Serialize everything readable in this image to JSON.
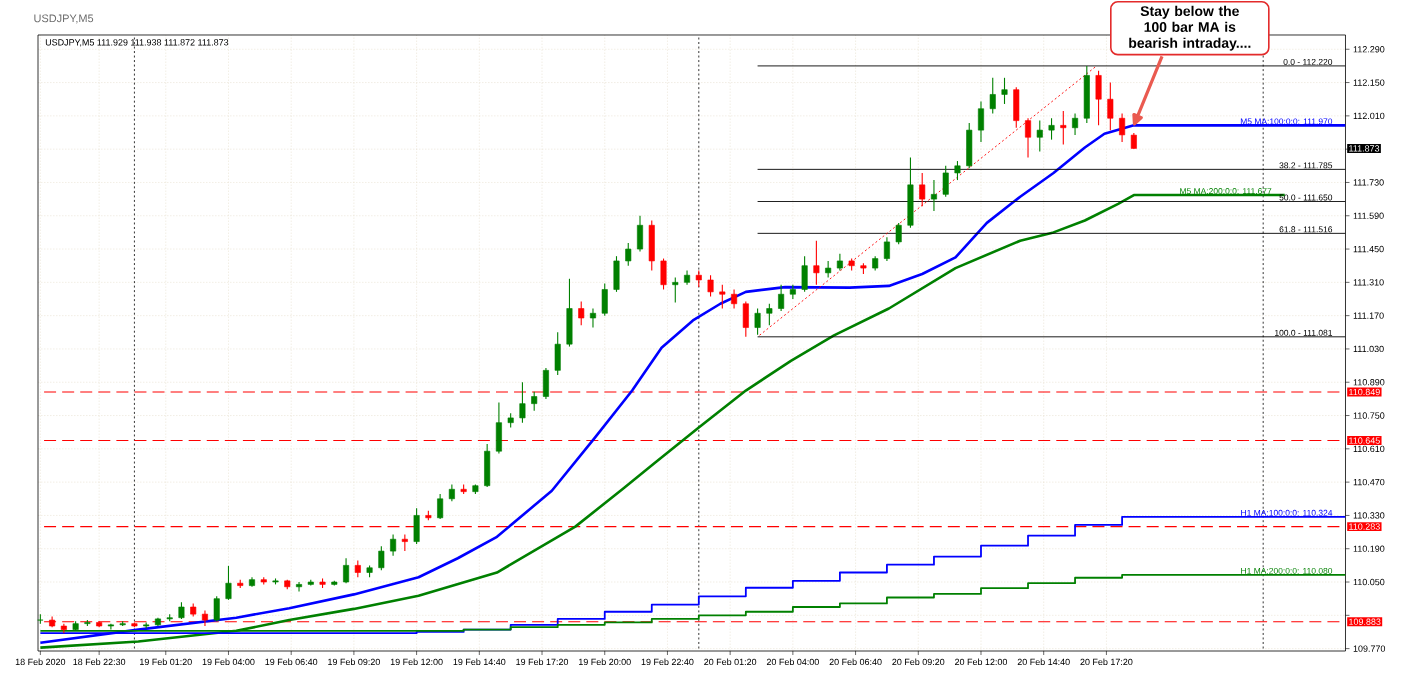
{
  "chart_data": {
    "type": "candlestick",
    "title": "USDJPY,M5",
    "subtitle": "USDJPY,M5 111.929 111.938 111.872 111.873",
    "x": [
      "2020-02-18T20:00",
      "2020-02-18T20:30",
      "2020-02-18T21:00",
      "2020-02-18T21:30",
      "2020-02-18T22:00",
      "2020-02-18T22:30",
      "2020-02-18T23:00",
      "2020-02-18T23:30",
      "2020-02-19T00:00",
      "2020-02-19T00:30",
      "2020-02-19T01:00",
      "2020-02-19T01:30",
      "2020-02-19T02:00",
      "2020-02-19T02:30",
      "2020-02-19T03:00",
      "2020-02-19T03:30",
      "2020-02-19T04:00",
      "2020-02-19T04:30",
      "2020-02-19T05:00",
      "2020-02-19T05:30",
      "2020-02-19T06:00",
      "2020-02-19T06:30",
      "2020-02-19T07:00",
      "2020-02-19T07:30",
      "2020-02-19T08:00",
      "2020-02-19T08:30",
      "2020-02-19T09:00",
      "2020-02-19T09:30",
      "2020-02-19T10:00",
      "2020-02-19T10:30",
      "2020-02-19T11:00",
      "2020-02-19T11:30",
      "2020-02-19T12:00",
      "2020-02-19T12:30",
      "2020-02-19T13:00",
      "2020-02-19T13:30",
      "2020-02-19T14:00",
      "2020-02-19T14:30",
      "2020-02-19T15:00",
      "2020-02-19T15:30",
      "2020-02-19T16:00",
      "2020-02-19T16:30",
      "2020-02-19T17:00",
      "2020-02-19T17:30",
      "2020-02-19T18:00",
      "2020-02-19T18:30",
      "2020-02-19T19:00",
      "2020-02-19T19:30",
      "2020-02-19T20:00",
      "2020-02-19T20:30",
      "2020-02-19T21:00",
      "2020-02-19T21:30",
      "2020-02-19T22:00",
      "2020-02-19T22:30",
      "2020-02-19T23:00",
      "2020-02-19T23:30",
      "2020-02-20T00:00",
      "2020-02-20T00:30",
      "2020-02-20T01:00",
      "2020-02-20T01:30",
      "2020-02-20T02:00",
      "2020-02-20T02:30",
      "2020-02-20T03:00",
      "2020-02-20T03:30",
      "2020-02-20T04:00",
      "2020-02-20T04:30",
      "2020-02-20T05:00",
      "2020-02-20T05:30",
      "2020-02-20T06:00",
      "2020-02-20T06:30",
      "2020-02-20T07:00",
      "2020-02-20T07:30",
      "2020-02-20T08:00",
      "2020-02-20T08:30",
      "2020-02-20T09:00",
      "2020-02-20T09:30",
      "2020-02-20T10:00",
      "2020-02-20T10:30",
      "2020-02-20T11:00",
      "2020-02-20T11:30",
      "2020-02-20T12:00",
      "2020-02-20T12:30",
      "2020-02-20T13:00",
      "2020-02-20T13:30",
      "2020-02-20T14:00",
      "2020-02-20T14:30",
      "2020-02-20T15:00",
      "2020-02-20T15:30",
      "2020-02-20T16:00",
      "2020-02-20T16:30",
      "2020-02-20T17:00",
      "2020-02-20T17:30",
      "2020-02-20T18:00",
      "2020-02-20T18:30"
    ],
    "ohlc": [
      [
        109.89,
        109.915,
        109.875,
        109.89
      ],
      [
        109.89,
        109.905,
        109.86,
        109.865
      ],
      [
        109.865,
        109.875,
        109.835,
        109.85
      ],
      [
        109.85,
        109.885,
        109.845,
        109.875
      ],
      [
        109.875,
        109.89,
        109.865,
        109.88
      ],
      [
        109.88,
        109.885,
        109.86,
        109.865
      ],
      [
        109.865,
        109.875,
        109.85,
        109.87
      ],
      [
        109.87,
        109.885,
        109.865,
        109.875
      ],
      [
        109.875,
        109.88,
        109.86,
        109.865
      ],
      [
        109.865,
        109.88,
        109.855,
        109.87
      ],
      [
        109.87,
        109.9,
        109.865,
        109.895
      ],
      [
        109.895,
        109.915,
        109.885,
        109.9
      ],
      [
        109.9,
        109.965,
        109.895,
        109.945
      ],
      [
        109.945,
        109.96,
        109.905,
        109.915
      ],
      [
        109.915,
        109.93,
        109.865,
        109.89
      ],
      [
        109.89,
        109.99,
        109.885,
        109.98
      ],
      [
        109.98,
        110.118,
        109.975,
        110.045
      ],
      [
        110.045,
        110.06,
        110.025,
        110.035
      ],
      [
        110.035,
        110.07,
        110.03,
        110.06
      ],
      [
        110.06,
        110.07,
        110.04,
        110.05
      ],
      [
        110.05,
        110.065,
        110.04,
        110.055
      ],
      [
        110.055,
        110.06,
        110.02,
        110.03
      ],
      [
        110.03,
        110.05,
        110.01,
        110.04
      ],
      [
        110.04,
        110.06,
        110.035,
        110.05
      ],
      [
        110.05,
        110.065,
        110.025,
        110.04
      ],
      [
        110.04,
        110.055,
        110.035,
        110.05
      ],
      [
        110.05,
        110.15,
        110.045,
        110.12
      ],
      [
        110.12,
        110.14,
        110.07,
        110.09
      ],
      [
        110.09,
        110.12,
        110.07,
        110.11
      ],
      [
        110.11,
        110.2,
        110.1,
        110.18
      ],
      [
        110.18,
        110.25,
        110.16,
        110.23
      ],
      [
        110.23,
        110.25,
        110.18,
        110.22
      ],
      [
        110.22,
        110.36,
        110.21,
        110.33
      ],
      [
        110.33,
        110.35,
        110.31,
        110.32
      ],
      [
        110.32,
        110.42,
        110.315,
        110.4
      ],
      [
        110.4,
        110.46,
        110.39,
        110.44
      ],
      [
        110.44,
        110.46,
        110.42,
        110.43
      ],
      [
        110.43,
        110.46,
        110.42,
        110.455
      ],
      [
        110.455,
        110.63,
        110.45,
        110.6
      ],
      [
        110.6,
        110.805,
        110.59,
        110.72
      ],
      [
        110.72,
        110.76,
        110.7,
        110.74
      ],
      [
        110.74,
        110.89,
        110.72,
        110.8
      ],
      [
        110.8,
        110.85,
        110.77,
        110.83
      ],
      [
        110.83,
        110.95,
        110.82,
        110.94
      ],
      [
        110.94,
        111.1,
        110.92,
        111.05
      ],
      [
        111.05,
        111.325,
        111.04,
        111.2
      ],
      [
        111.2,
        111.23,
        111.13,
        111.16
      ],
      [
        111.16,
        111.2,
        111.12,
        111.18
      ],
      [
        111.18,
        111.305,
        111.17,
        111.28
      ],
      [
        111.28,
        111.42,
        111.27,
        111.4
      ],
      [
        111.4,
        111.475,
        111.38,
        111.45
      ],
      [
        111.45,
        111.59,
        111.44,
        111.55
      ],
      [
        111.55,
        111.57,
        111.36,
        111.4
      ],
      [
        111.4,
        111.41,
        111.28,
        111.3
      ],
      [
        111.3,
        111.33,
        111.225,
        111.31
      ],
      [
        111.31,
        111.36,
        111.3,
        111.34
      ],
      [
        111.34,
        111.36,
        111.29,
        111.32
      ],
      [
        111.32,
        111.34,
        111.25,
        111.27
      ],
      [
        111.27,
        111.3,
        111.2,
        111.26
      ],
      [
        111.26,
        111.28,
        111.2,
        111.22
      ],
      [
        111.22,
        111.23,
        111.081,
        111.12
      ],
      [
        111.12,
        111.2,
        111.09,
        111.18
      ],
      [
        111.18,
        111.22,
        111.13,
        111.2
      ],
      [
        111.2,
        111.3,
        111.19,
        111.26
      ],
      [
        111.26,
        111.3,
        111.24,
        111.28
      ],
      [
        111.28,
        111.42,
        111.27,
        111.38
      ],
      [
        111.38,
        111.485,
        111.3,
        111.35
      ],
      [
        111.35,
        111.4,
        111.33,
        111.37
      ],
      [
        111.37,
        111.43,
        111.36,
        111.4
      ],
      [
        111.4,
        111.41,
        111.36,
        111.38
      ],
      [
        111.38,
        111.39,
        111.345,
        111.37
      ],
      [
        111.37,
        111.42,
        111.36,
        111.41
      ],
      [
        111.41,
        111.5,
        111.4,
        111.48
      ],
      [
        111.48,
        111.56,
        111.47,
        111.55
      ],
      [
        111.55,
        111.835,
        111.54,
        111.72
      ],
      [
        111.72,
        111.77,
        111.63,
        111.66
      ],
      [
        111.66,
        111.74,
        111.61,
        111.68
      ],
      [
        111.68,
        111.8,
        111.67,
        111.77
      ],
      [
        111.77,
        111.82,
        111.74,
        111.8
      ],
      [
        111.8,
        111.98,
        111.79,
        111.95
      ],
      [
        111.95,
        112.07,
        111.9,
        112.04
      ],
      [
        112.04,
        112.17,
        112.02,
        112.1
      ],
      [
        112.1,
        112.17,
        112.06,
        112.12
      ],
      [
        112.12,
        112.13,
        111.96,
        111.99
      ],
      [
        111.99,
        112.0,
        111.835,
        111.92
      ],
      [
        111.92,
        111.99,
        111.86,
        111.95
      ],
      [
        111.95,
        112.0,
        111.91,
        111.97
      ],
      [
        111.97,
        112.03,
        111.89,
        111.96
      ],
      [
        111.96,
        112.02,
        111.93,
        112.0
      ],
      [
        112.0,
        112.22,
        111.98,
        112.18
      ],
      [
        112.18,
        112.2,
        111.97,
        112.08
      ],
      [
        112.08,
        112.15,
        111.95,
        112.0
      ],
      [
        112.0,
        112.02,
        111.9,
        111.93
      ],
      [
        111.929,
        111.938,
        111.872,
        111.873
      ]
    ],
    "colors": [
      "#008000",
      "#ff0000",
      "#ff0000",
      "#008000",
      "#008000",
      "#ff0000",
      "#008000",
      "#008000",
      "#ff0000",
      "#008000",
      "#008000",
      "#008000",
      "#008000",
      "#ff0000",
      "#ff0000",
      "#008000",
      "#008000",
      "#ff0000",
      "#008000",
      "#ff0000",
      "#008000",
      "#ff0000",
      "#008000",
      "#008000",
      "#ff0000",
      "#008000",
      "#008000",
      "#ff0000",
      "#008000",
      "#008000",
      "#008000",
      "#ff0000",
      "#008000",
      "#ff0000",
      "#008000",
      "#008000",
      "#ff0000",
      "#008000",
      "#008000",
      "#008000",
      "#008000",
      "#008000",
      "#008000",
      "#008000",
      "#008000",
      "#008000",
      "#ff0000",
      "#008000",
      "#008000",
      "#008000",
      "#008000",
      "#008000",
      "#ff0000",
      "#ff0000",
      "#008000",
      "#008000",
      "#ff0000",
      "#ff0000",
      "#ff0000",
      "#ff0000",
      "#ff0000",
      "#008000",
      "#008000",
      "#008000",
      "#008000",
      "#008000",
      "#ff0000",
      "#008000",
      "#008000",
      "#ff0000",
      "#ff0000",
      "#008000",
      "#008000",
      "#008000",
      "#008000",
      "#ff0000",
      "#008000",
      "#008000",
      "#008000",
      "#008000",
      "#008000",
      "#008000",
      "#008000",
      "#ff0000",
      "#ff0000",
      "#008000",
      "#008000",
      "#ff0000",
      "#008000",
      "#008000",
      "#ff0000",
      "#ff0000",
      "#ff0000",
      "#ff0000"
    ],
    "series": [
      {
        "name": "M5 MA:100:0:0: 111.970",
        "type": "line",
        "color": "#0000ff",
        "x": [
          "2020-02-18T20:00",
          "2020-02-19T00:10",
          "2020-02-19T04:20",
          "2020-02-19T06:35",
          "2020-02-19T09:20",
          "2020-02-19T12:05",
          "2020-02-19T13:45",
          "2020-02-19T15:25",
          "2020-02-19T17:45",
          "2020-02-19T19:35",
          "2020-02-19T21:10",
          "2020-02-19T22:25",
          "2020-02-19T23:45",
          "2020-02-20T00:55",
          "2020-02-20T02:00",
          "2020-02-20T03:40",
          "2020-02-20T06:25",
          "2020-02-20T08:05",
          "2020-02-20T09:30",
          "2020-02-20T10:55",
          "2020-02-20T12:15",
          "2020-02-20T13:40",
          "2020-02-20T15:05",
          "2020-02-20T16:25",
          "2020-02-20T17:15",
          "2020-02-20T18:30",
          "2020-02-21T03:30"
        ],
        "values": [
          109.795,
          109.85,
          109.9,
          109.94,
          109.998,
          110.07,
          110.15,
          110.24,
          110.434,
          110.657,
          110.855,
          111.035,
          111.15,
          111.22,
          111.27,
          111.29,
          111.288,
          111.295,
          111.345,
          111.415,
          111.56,
          111.67,
          111.77,
          111.877,
          111.935,
          111.97,
          111.97
        ]
      },
      {
        "name": "M5 MA:200:0:0: 111.677",
        "type": "line",
        "color": "#008000",
        "x": [
          "2020-02-18T20:00",
          "2020-02-19T00:10",
          "2020-02-19T04:20",
          "2020-02-19T06:35",
          "2020-02-19T09:20",
          "2020-02-19T12:05",
          "2020-02-19T15:25",
          "2020-02-19T18:45",
          "2020-02-19T20:45",
          "2020-02-19T22:05",
          "2020-02-20T00:00",
          "2020-02-20T02:00",
          "2020-02-20T03:55",
          "2020-02-20T05:45",
          "2020-02-20T08:05",
          "2020-02-20T10:55",
          "2020-02-20T13:40",
          "2020-02-20T15:05",
          "2020-02-20T16:25",
          "2020-02-20T17:50",
          "2020-02-20T18:30",
          "2020-02-21T00:55"
        ],
        "values": [
          109.774,
          109.8,
          109.845,
          109.89,
          109.937,
          109.992,
          110.09,
          110.283,
          110.44,
          110.547,
          110.7,
          110.855,
          110.98,
          111.087,
          111.2,
          111.37,
          111.485,
          111.52,
          111.57,
          111.64,
          111.677,
          111.677
        ]
      },
      {
        "name": "H1 MA:100:0:0: 110.324",
        "type": "step",
        "color": "#0000ff",
        "x": [
          "2020-02-18T20:00",
          "2020-02-19T12:00",
          "2020-02-19T14:00",
          "2020-02-19T16:00",
          "2020-02-19T18:00",
          "2020-02-19T20:00",
          "2020-02-19T22:00",
          "2020-02-20T00:00",
          "2020-02-20T02:00",
          "2020-02-20T04:00",
          "2020-02-20T06:00",
          "2020-02-20T08:00",
          "2020-02-20T10:00",
          "2020-02-20T12:00",
          "2020-02-20T14:00",
          "2020-02-20T16:00",
          "2020-02-20T18:00",
          "2020-02-21T03:30"
        ],
        "values": [
          109.835,
          109.84,
          109.85,
          109.87,
          109.895,
          109.925,
          109.955,
          109.99,
          110.026,
          110.055,
          110.09,
          110.123,
          110.157,
          110.203,
          110.245,
          110.29,
          110.324,
          110.324
        ]
      },
      {
        "name": "H1 MA:200:0:0: 110.080",
        "type": "step",
        "color": "#008000",
        "x": [
          "2020-02-18T20:00",
          "2020-02-19T14:00",
          "2020-02-19T16:00",
          "2020-02-19T18:00",
          "2020-02-19T20:00",
          "2020-02-19T22:00",
          "2020-02-20T00:00",
          "2020-02-20T02:00",
          "2020-02-20T04:00",
          "2020-02-20T06:00",
          "2020-02-20T08:00",
          "2020-02-20T10:00",
          "2020-02-20T12:00",
          "2020-02-20T14:00",
          "2020-02-20T16:00",
          "2020-02-20T18:00",
          "2020-02-21T03:30"
        ],
        "values": [
          109.845,
          109.85,
          109.86,
          109.87,
          109.88,
          109.895,
          109.91,
          109.925,
          109.945,
          109.96,
          109.985,
          110.0,
          110.024,
          110.045,
          110.068,
          110.08,
          110.08
        ]
      },
      {
        "name": "0.0 - 112.220",
        "type": "line",
        "color": "#000000",
        "x": [
          "2020-02-20T02:30",
          "2020-02-21T03:30"
        ],
        "values": [
          112.22,
          112.22
        ]
      },
      {
        "name": "38.2 - 111.785",
        "type": "line",
        "color": "#000000",
        "x": [
          "2020-02-20T02:30",
          "2020-02-21T03:30"
        ],
        "values": [
          111.785,
          111.785
        ]
      },
      {
        "name": "50.0 - 111.650",
        "type": "line",
        "color": "#000000",
        "x": [
          "2020-02-20T02:30",
          "2020-02-21T03:30"
        ],
        "values": [
          111.65,
          111.65
        ]
      },
      {
        "name": "61.8 - 111.516",
        "type": "line",
        "color": "#000000",
        "x": [
          "2020-02-20T02:30",
          "2020-02-21T03:30"
        ],
        "values": [
          111.516,
          111.516
        ]
      },
      {
        "name": "100.0 - 111.081",
        "type": "line",
        "color": "#000000",
        "x": [
          "2020-02-20T02:30",
          "2020-02-21T03:30"
        ],
        "values": [
          111.081,
          111.081
        ]
      },
      {
        "type": "line",
        "color": "#ff0000",
        "line_style": "dotted",
        "x": [
          "2020-02-20T02:30",
          "2020-02-20T16:55"
        ],
        "values": [
          111.081,
          112.22
        ]
      }
    ],
    "xlim": [
      "2020-02-18T19:54",
      "2020-02-21T03:30"
    ],
    "ylim": [
      109.76,
      112.35
    ],
    "xticks": [
      {
        "value": "2020-02-18T20:00",
        "label": "18 Feb 2020"
      },
      {
        "value": "2020-02-18T22:30",
        "label": "18 Feb 22:30"
      },
      {
        "value": "2020-02-19T01:20",
        "label": "19 Feb 01:20"
      },
      {
        "value": "2020-02-19T04:00",
        "label": "19 Feb 04:00"
      },
      {
        "value": "2020-02-19T06:40",
        "label": "19 Feb 06:40"
      },
      {
        "value": "2020-02-19T09:20",
        "label": "19 Feb 09:20"
      },
      {
        "value": "2020-02-19T12:00",
        "label": "19 Feb 12:00"
      },
      {
        "value": "2020-02-19T14:40",
        "label": "19 Feb 14:40"
      },
      {
        "value": "2020-02-19T17:20",
        "label": "19 Feb 17:20"
      },
      {
        "value": "2020-02-19T20:00",
        "label": "19 Feb 20:00"
      },
      {
        "value": "2020-02-19T22:40",
        "label": "19 Feb 22:40"
      },
      {
        "value": "2020-02-20T01:20",
        "label": "20 Feb 01:20"
      },
      {
        "value": "2020-02-20T04:00",
        "label": "20 Feb 04:00"
      },
      {
        "value": "2020-02-20T06:40",
        "label": "20 Feb 06:40"
      },
      {
        "value": "2020-02-20T09:20",
        "label": "20 Feb 09:20"
      },
      {
        "value": "2020-02-20T12:00",
        "label": "20 Feb 12:00"
      },
      {
        "value": "2020-02-20T14:40",
        "label": "20 Feb 14:40"
      },
      {
        "value": "2020-02-20T17:20",
        "label": "20 Feb 17:20"
      }
    ],
    "yticks": [
      {
        "value": 112.29,
        "label": "112.290"
      },
      {
        "value": 112.15,
        "label": "112.150"
      },
      {
        "value": 112.01,
        "label": "112.010"
      },
      {
        "value": 111.87,
        "label": null
      },
      {
        "value": 111.73,
        "label": "111.730"
      },
      {
        "value": 111.59,
        "label": "111.590"
      },
      {
        "value": 111.45,
        "label": "111.450"
      },
      {
        "value": 111.31,
        "label": "111.310"
      },
      {
        "value": 111.17,
        "label": "111.170"
      },
      {
        "value": 111.03,
        "label": "111.030"
      },
      {
        "value": 110.89,
        "label": "110.890"
      },
      {
        "value": 110.75,
        "label": "110.750"
      },
      {
        "value": 110.61,
        "label": "110.610"
      },
      {
        "value": 110.47,
        "label": "110.470"
      },
      {
        "value": 110.33,
        "label": "110.330"
      },
      {
        "value": 110.19,
        "label": "110.190"
      },
      {
        "value": 110.05,
        "label": "110.050"
      },
      {
        "value": 109.91,
        "label": null
      },
      {
        "value": 109.77,
        "label": "109.770"
      }
    ],
    "grid": true,
    "ref_lines": [
      {
        "axis": "x",
        "value": "2020-02-19T00:00",
        "color": "#000000",
        "line_style": "dotted"
      },
      {
        "axis": "x",
        "value": "2020-02-20T00:00",
        "color": "#000000",
        "line_style": "dotted"
      },
      {
        "axis": "x",
        "value": "2020-02-21T00:00",
        "color": "#000000",
        "line_style": "dotted"
      },
      {
        "axis": "y",
        "value": 110.849,
        "label": "110.849",
        "color": "#ff0000",
        "line_style": "dashed"
      },
      {
        "axis": "y",
        "value": 110.645,
        "label": "110.645",
        "color": "#ff0000",
        "line_style": "dashed"
      },
      {
        "axis": "y",
        "value": 110.283,
        "label": "110.283",
        "color": "#ff0000",
        "line_style": "dashed"
      },
      {
        "axis": "y",
        "value": 109.883,
        "label": "109.883",
        "color": "#ff0000",
        "line_style": "dashed"
      }
    ],
    "annotations": [
      {
        "text": "Stay below the 100 bar MA is bearish intraday....",
        "x": "2020-02-20T18:30",
        "y": 111.97
      },
      "111.873"
    ]
  }
}
